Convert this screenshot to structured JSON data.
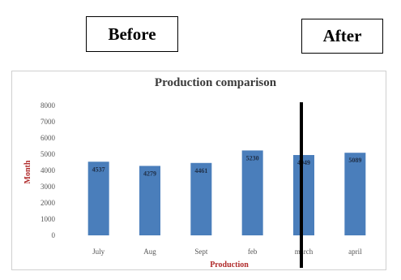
{
  "annotations": {
    "before_label": "Before",
    "after_label": "After"
  },
  "chart_data": {
    "type": "bar",
    "title": "Production comparison",
    "xlabel": "Production",
    "ylabel": "Month",
    "categories": [
      "July",
      "Aug",
      "Sept",
      "feb",
      "march",
      "april"
    ],
    "values": [
      4537,
      4279,
      4461,
      5230,
      4949,
      5089
    ],
    "ylim": [
      0,
      8000
    ],
    "yticks": [
      0,
      1000,
      2000,
      3000,
      4000,
      5000,
      6000,
      7000,
      8000
    ],
    "grid": false,
    "bar_color": "#4a7ebb",
    "marker_color": "#000000",
    "divider_after_category": "feb"
  }
}
